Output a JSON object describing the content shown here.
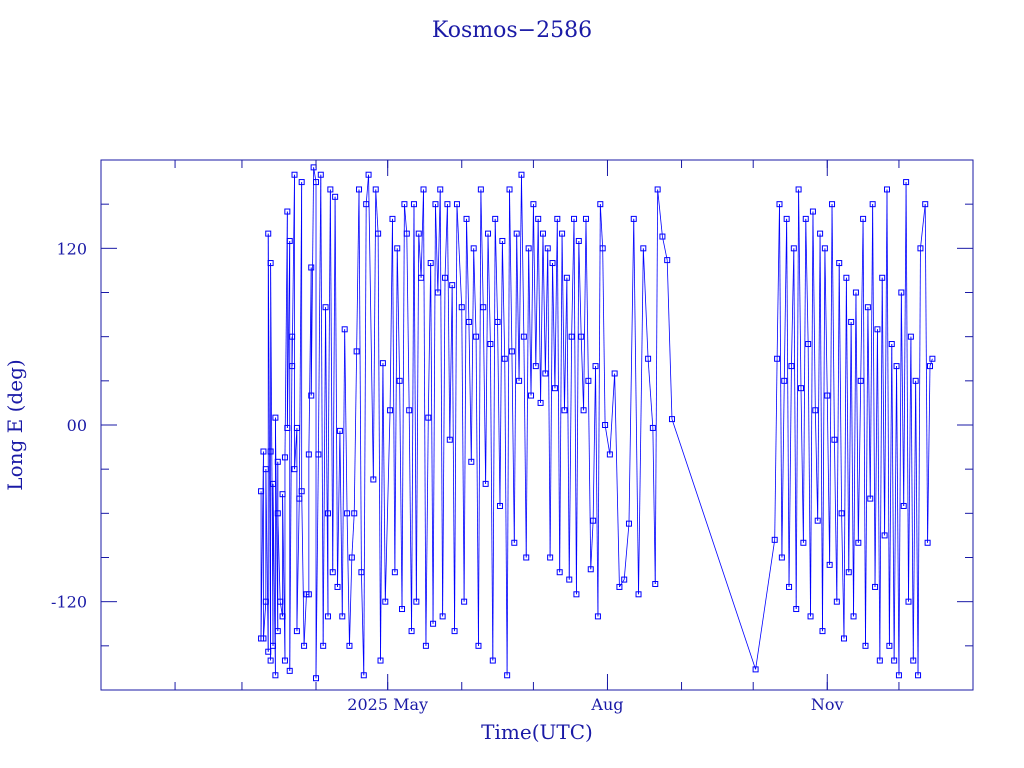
{
  "chart_data": {
    "type": "line",
    "title": "Kosmos−2586",
    "xlabel": "Time(UTC)",
    "ylabel": "Long E (deg)",
    "ylim": [
      -180,
      180
    ],
    "xlim": [
      "2025-01-01",
      "2026-01-01"
    ],
    "x_ticks": [
      {
        "date": "2025-05-01",
        "label": "2025 May"
      },
      {
        "date": "2025-08-01",
        "label": "Aug"
      },
      {
        "date": "2025-11-01",
        "label": "Nov"
      }
    ],
    "y_ticks": [
      -120,
      0,
      120
    ],
    "grid": false,
    "series": [
      {
        "marker": "square",
        "color": "#0000ff",
        "points": [
          [
            "2025-03-09",
            -45
          ],
          [
            "2025-03-09",
            -145
          ],
          [
            "2025-03-10",
            -18
          ],
          [
            "2025-03-10",
            -145
          ],
          [
            "2025-03-11",
            -120
          ],
          [
            "2025-03-11",
            -30
          ],
          [
            "2025-03-12",
            -154
          ],
          [
            "2025-03-12",
            130
          ],
          [
            "2025-03-13",
            -160
          ],
          [
            "2025-03-13",
            -18
          ],
          [
            "2025-03-13",
            110
          ],
          [
            "2025-03-14",
            -150
          ],
          [
            "2025-03-14",
            -40
          ],
          [
            "2025-03-15",
            -170
          ],
          [
            "2025-03-15",
            5
          ],
          [
            "2025-03-16",
            -140
          ],
          [
            "2025-03-16",
            -25
          ],
          [
            "2025-03-16",
            -60
          ],
          [
            "2025-03-17",
            -120
          ],
          [
            "2025-03-18",
            -130
          ],
          [
            "2025-03-18",
            -47
          ],
          [
            "2025-03-19",
            -160
          ],
          [
            "2025-03-19",
            -22
          ],
          [
            "2025-03-20",
            145
          ],
          [
            "2025-03-20",
            -2
          ],
          [
            "2025-03-21",
            125
          ],
          [
            "2025-03-21",
            -167
          ],
          [
            "2025-03-22",
            60
          ],
          [
            "2025-03-22",
            40
          ],
          [
            "2025-03-23",
            170
          ],
          [
            "2025-03-23",
            -30
          ],
          [
            "2025-03-24",
            -2
          ],
          [
            "2025-03-24",
            -140
          ],
          [
            "2025-03-25",
            -50
          ],
          [
            "2025-03-26",
            165
          ],
          [
            "2025-03-26",
            -45
          ],
          [
            "2025-03-27",
            -150
          ],
          [
            "2025-03-28",
            -115
          ],
          [
            "2025-03-29",
            -115
          ],
          [
            "2025-03-29",
            -20
          ],
          [
            "2025-03-30",
            107
          ],
          [
            "2025-03-30",
            20
          ],
          [
            "2025-03-31",
            175
          ],
          [
            "2025-04-01",
            165
          ],
          [
            "2025-04-01",
            -172
          ],
          [
            "2025-04-02",
            -20
          ],
          [
            "2025-04-03",
            170
          ],
          [
            "2025-04-04",
            -150
          ],
          [
            "2025-04-05",
            80
          ],
          [
            "2025-04-06",
            -130
          ],
          [
            "2025-04-06",
            -60
          ],
          [
            "2025-04-07",
            160
          ],
          [
            "2025-04-08",
            -100
          ],
          [
            "2025-04-09",
            155
          ],
          [
            "2025-04-10",
            -110
          ],
          [
            "2025-04-11",
            -4
          ],
          [
            "2025-04-12",
            -130
          ],
          [
            "2025-04-13",
            65
          ],
          [
            "2025-04-14",
            -60
          ],
          [
            "2025-04-15",
            -150
          ],
          [
            "2025-04-16",
            -90
          ],
          [
            "2025-04-17",
            -60
          ],
          [
            "2025-04-18",
            50
          ],
          [
            "2025-04-19",
            160
          ],
          [
            "2025-04-20",
            -100
          ],
          [
            "2025-04-21",
            -170
          ],
          [
            "2025-04-22",
            150
          ],
          [
            "2025-04-23",
            170
          ],
          [
            "2025-04-25",
            -37
          ],
          [
            "2025-04-26",
            160
          ],
          [
            "2025-04-27",
            130
          ],
          [
            "2025-04-28",
            -160
          ],
          [
            "2025-04-29",
            42
          ],
          [
            "2025-04-30",
            -120
          ],
          [
            "2025-05-02",
            10
          ],
          [
            "2025-05-03",
            140
          ],
          [
            "2025-05-04",
            -100
          ],
          [
            "2025-05-05",
            120
          ],
          [
            "2025-05-06",
            30
          ],
          [
            "2025-05-07",
            -125
          ],
          [
            "2025-05-08",
            150
          ],
          [
            "2025-05-09",
            130
          ],
          [
            "2025-05-10",
            10
          ],
          [
            "2025-05-11",
            -140
          ],
          [
            "2025-05-12",
            150
          ],
          [
            "2025-05-13",
            -120
          ],
          [
            "2025-05-14",
            130
          ],
          [
            "2025-05-15",
            100
          ],
          [
            "2025-05-16",
            160
          ],
          [
            "2025-05-17",
            -150
          ],
          [
            "2025-05-18",
            5
          ],
          [
            "2025-05-19",
            110
          ],
          [
            "2025-05-20",
            -135
          ],
          [
            "2025-05-21",
            150
          ],
          [
            "2025-05-22",
            90
          ],
          [
            "2025-05-23",
            160
          ],
          [
            "2025-05-24",
            -130
          ],
          [
            "2025-05-25",
            100
          ],
          [
            "2025-05-26",
            150
          ],
          [
            "2025-05-27",
            -10
          ],
          [
            "2025-05-28",
            95
          ],
          [
            "2025-05-29",
            -140
          ],
          [
            "2025-05-30",
            150
          ],
          [
            "2025-06-01",
            80
          ],
          [
            "2025-06-02",
            -120
          ],
          [
            "2025-06-03",
            140
          ],
          [
            "2025-06-04",
            70
          ],
          [
            "2025-06-05",
            -25
          ],
          [
            "2025-06-06",
            120
          ],
          [
            "2025-06-07",
            60
          ],
          [
            "2025-06-08",
            -150
          ],
          [
            "2025-06-09",
            160
          ],
          [
            "2025-06-10",
            80
          ],
          [
            "2025-06-11",
            -40
          ],
          [
            "2025-06-12",
            130
          ],
          [
            "2025-06-13",
            55
          ],
          [
            "2025-06-14",
            -160
          ],
          [
            "2025-06-15",
            140
          ],
          [
            "2025-06-16",
            70
          ],
          [
            "2025-06-17",
            -55
          ],
          [
            "2025-06-18",
            125
          ],
          [
            "2025-06-19",
            45
          ],
          [
            "2025-06-20",
            -170
          ],
          [
            "2025-06-21",
            160
          ],
          [
            "2025-06-22",
            50
          ],
          [
            "2025-06-23",
            -80
          ],
          [
            "2025-06-24",
            130
          ],
          [
            "2025-06-25",
            30
          ],
          [
            "2025-06-26",
            170
          ],
          [
            "2025-06-27",
            60
          ],
          [
            "2025-06-28",
            -90
          ],
          [
            "2025-06-29",
            120
          ],
          [
            "2025-06-30",
            20
          ],
          [
            "2025-07-01",
            150
          ],
          [
            "2025-07-02",
            40
          ],
          [
            "2025-07-03",
            140
          ],
          [
            "2025-07-04",
            15
          ],
          [
            "2025-07-05",
            130
          ],
          [
            "2025-07-06",
            35
          ],
          [
            "2025-07-07",
            120
          ],
          [
            "2025-07-08",
            -90
          ],
          [
            "2025-07-09",
            110
          ],
          [
            "2025-07-10",
            25
          ],
          [
            "2025-07-11",
            140
          ],
          [
            "2025-07-12",
            -100
          ],
          [
            "2025-07-13",
            130
          ],
          [
            "2025-07-14",
            10
          ],
          [
            "2025-07-15",
            100
          ],
          [
            "2025-07-16",
            -105
          ],
          [
            "2025-07-17",
            60
          ],
          [
            "2025-07-18",
            140
          ],
          [
            "2025-07-19",
            -115
          ],
          [
            "2025-07-20",
            125
          ],
          [
            "2025-07-21",
            60
          ],
          [
            "2025-07-22",
            10
          ],
          [
            "2025-07-23",
            140
          ],
          [
            "2025-07-24",
            30
          ],
          [
            "2025-07-25",
            -98
          ],
          [
            "2025-07-26",
            -65
          ],
          [
            "2025-07-27",
            40
          ],
          [
            "2025-07-28",
            -130
          ],
          [
            "2025-07-29",
            150
          ],
          [
            "2025-07-30",
            120
          ],
          [
            "2025-07-31",
            0
          ],
          [
            "2025-08-02",
            -20
          ],
          [
            "2025-08-04",
            35
          ],
          [
            "2025-08-06",
            -110
          ],
          [
            "2025-08-08",
            -105
          ],
          [
            "2025-08-10",
            -67
          ],
          [
            "2025-08-12",
            140
          ],
          [
            "2025-08-14",
            -115
          ],
          [
            "2025-08-16",
            120
          ],
          [
            "2025-08-18",
            45
          ],
          [
            "2025-08-20",
            -2
          ],
          [
            "2025-08-21",
            -108
          ],
          [
            "2025-08-22",
            160
          ],
          [
            "2025-08-24",
            128
          ],
          [
            "2025-08-26",
            112
          ],
          [
            "2025-08-28",
            4
          ],
          [
            "2025-10-02",
            -166
          ],
          [
            "2025-10-10",
            -78
          ],
          [
            "2025-10-11",
            45
          ],
          [
            "2025-10-12",
            150
          ],
          [
            "2025-10-13",
            -90
          ],
          [
            "2025-10-14",
            30
          ],
          [
            "2025-10-15",
            140
          ],
          [
            "2025-10-16",
            -110
          ],
          [
            "2025-10-17",
            40
          ],
          [
            "2025-10-18",
            120
          ],
          [
            "2025-10-19",
            -125
          ],
          [
            "2025-10-20",
            160
          ],
          [
            "2025-10-21",
            25
          ],
          [
            "2025-10-22",
            -80
          ],
          [
            "2025-10-23",
            140
          ],
          [
            "2025-10-24",
            55
          ],
          [
            "2025-10-25",
            -130
          ],
          [
            "2025-10-26",
            145
          ],
          [
            "2025-10-27",
            10
          ],
          [
            "2025-10-28",
            -65
          ],
          [
            "2025-10-29",
            130
          ],
          [
            "2025-10-30",
            -140
          ],
          [
            "2025-10-31",
            120
          ],
          [
            "2025-11-01",
            20
          ],
          [
            "2025-11-02",
            -95
          ],
          [
            "2025-11-03",
            150
          ],
          [
            "2025-11-04",
            -10
          ],
          [
            "2025-11-05",
            -120
          ],
          [
            "2025-11-06",
            110
          ],
          [
            "2025-11-07",
            -60
          ],
          [
            "2025-11-08",
            -145
          ],
          [
            "2025-11-09",
            100
          ],
          [
            "2025-11-10",
            -100
          ],
          [
            "2025-11-11",
            70
          ],
          [
            "2025-11-12",
            -130
          ],
          [
            "2025-11-13",
            90
          ],
          [
            "2025-11-14",
            -80
          ],
          [
            "2025-11-15",
            30
          ],
          [
            "2025-11-16",
            140
          ],
          [
            "2025-11-17",
            -150
          ],
          [
            "2025-11-18",
            80
          ],
          [
            "2025-11-19",
            -50
          ],
          [
            "2025-11-20",
            150
          ],
          [
            "2025-11-21",
            -110
          ],
          [
            "2025-11-22",
            65
          ],
          [
            "2025-11-23",
            -160
          ],
          [
            "2025-11-24",
            100
          ],
          [
            "2025-11-25",
            -75
          ],
          [
            "2025-11-26",
            160
          ],
          [
            "2025-11-27",
            -150
          ],
          [
            "2025-11-28",
            55
          ],
          [
            "2025-11-29",
            -160
          ],
          [
            "2025-11-30",
            40
          ],
          [
            "2025-12-01",
            -170
          ],
          [
            "2025-12-02",
            90
          ],
          [
            "2025-12-03",
            -55
          ],
          [
            "2025-12-04",
            165
          ],
          [
            "2025-12-05",
            -120
          ],
          [
            "2025-12-06",
            60
          ],
          [
            "2025-12-07",
            -160
          ],
          [
            "2025-12-08",
            30
          ],
          [
            "2025-12-09",
            -170
          ],
          [
            "2025-12-10",
            120
          ],
          [
            "2025-12-12",
            150
          ],
          [
            "2025-12-13",
            -80
          ],
          [
            "2025-12-14",
            40
          ],
          [
            "2025-12-15",
            45
          ]
        ]
      }
    ]
  }
}
